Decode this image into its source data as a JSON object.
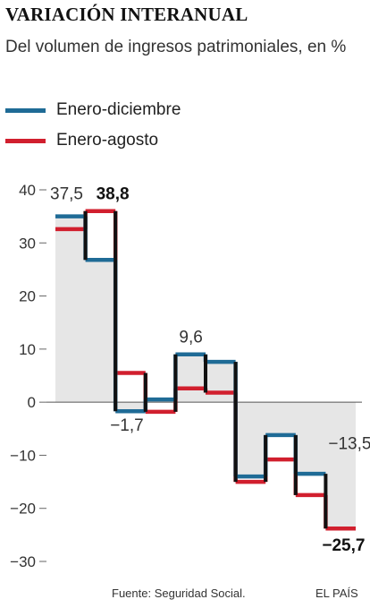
{
  "title": "VARIACIÓN INTERANUAL",
  "subtitle": "Del volumen de ingresos patrimoniales, en %",
  "legend": [
    {
      "label": "Enero-diciembre",
      "color": "#1f6b96"
    },
    {
      "label": "Enero-agosto",
      "color": "#d11f2e"
    }
  ],
  "footer": {
    "source": "Fuente: Seguridad Social.",
    "brand": "EL PAÍS"
  },
  "chart_data": {
    "type": "line",
    "step": true,
    "x": [
      1,
      2,
      3,
      4,
      5,
      6,
      7,
      8,
      9,
      10
    ],
    "series": [
      {
        "name": "Enero-diciembre",
        "color": "#1f6b96",
        "values": [
          35,
          26.8,
          -1.7,
          0.5,
          9.0,
          7.6,
          -14.0,
          -6.2,
          -13.5,
          null
        ]
      },
      {
        "name": "Enero-agosto",
        "color": "#d11f2e",
        "values": [
          32.6,
          36.0,
          5.5,
          -1.8,
          2.6,
          1.8,
          -15.0,
          -10.8,
          -17.5,
          -23.8
        ]
      }
    ],
    "connector_color": "#111111",
    "area_color": "#e6e6e6",
    "yticks": [
      40,
      30,
      20,
      10,
      0,
      -10,
      -20,
      -30
    ],
    "ytick_labels": [
      "40",
      "30",
      "20",
      "10",
      "0",
      "−10",
      "−20",
      "−30"
    ],
    "ylim": [
      -30,
      40
    ],
    "grid": false,
    "annotations": [
      {
        "text": "37,5",
        "bold": false
      },
      {
        "text": "38,8",
        "bold": true
      },
      {
        "text": "−1,7",
        "bold": false
      },
      {
        "text": "9,6",
        "bold": false
      },
      {
        "text": "−13,5",
        "bold": false
      },
      {
        "text": "−25,7",
        "bold": true
      }
    ]
  }
}
